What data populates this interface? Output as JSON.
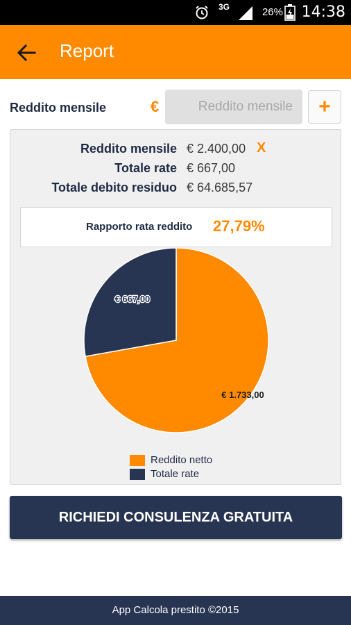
{
  "status_bar": {
    "time": "14:38",
    "battery_pct": "26%",
    "network": "3G"
  },
  "app_bar": {
    "title": "Report"
  },
  "income_row": {
    "label": "Reddito mensile",
    "currency_symbol": "€",
    "input_placeholder": "Reddito mensile",
    "add_label": "+"
  },
  "summary": {
    "rows": [
      {
        "label": "Reddito mensile",
        "value": "€ 2.400,00"
      },
      {
        "label": "Totale rate",
        "value": "€ 667,00"
      },
      {
        "label": "Totale debito residuo",
        "value": "€ 64.685,57"
      }
    ],
    "clear_label": "X"
  },
  "ratio": {
    "label": "Rapporto rata reddito",
    "value": "27,79%"
  },
  "chart_data": {
    "type": "pie",
    "slices": [
      {
        "name": "Reddito netto",
        "value": 1733.0,
        "label": "€ 1.733,00",
        "color": "#ff8a00"
      },
      {
        "name": "Totale rate",
        "value": 667.0,
        "label": "€ 667,00",
        "color": "#283552"
      }
    ],
    "legend_position": "bottom"
  },
  "cta": {
    "label": "RICHIEDI CONSULENZA GRATUITA"
  },
  "footer": {
    "text": "App Calcola prestito ©2015"
  },
  "colors": {
    "accent": "#ff8a00",
    "navy": "#283552"
  }
}
